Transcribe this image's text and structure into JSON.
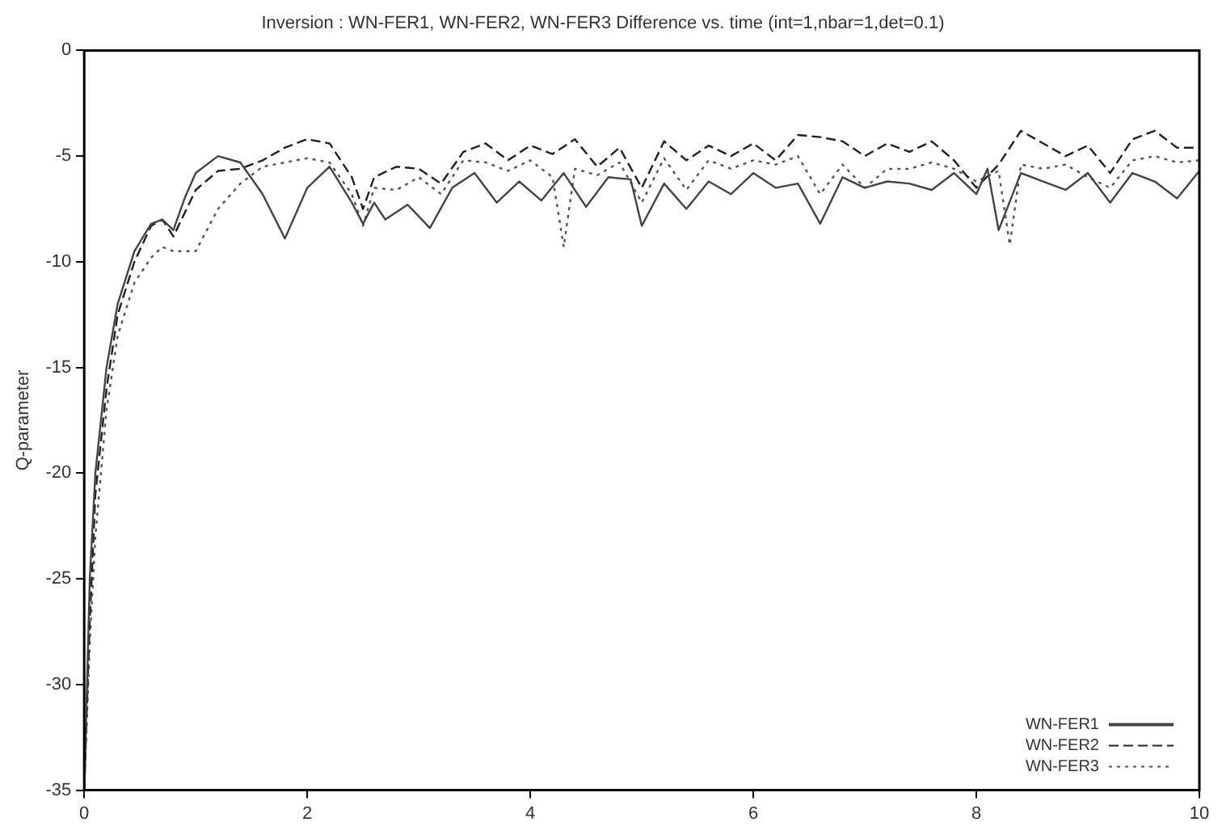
{
  "chart_data": {
    "type": "line",
    "title": "Inversion : WN-FER1, WN-FER2, WN-FER3 Difference vs. time (int=1,nbar=1,det=0.1)",
    "ylabel": "Q-parameter",
    "x": [
      0,
      0.05,
      0.1,
      0.2,
      0.3,
      0.45,
      0.6,
      0.7,
      0.8,
      0.9,
      1.0,
      1.2,
      1.4,
      1.6,
      1.8,
      2.0,
      2.2,
      2.4,
      2.5,
      2.6,
      2.7,
      2.9,
      3.1,
      3.3,
      3.5,
      3.7,
      3.9,
      4.1,
      4.3,
      4.5,
      4.7,
      4.9,
      5.0,
      5.2,
      5.4,
      5.6,
      5.8,
      6.0,
      6.2,
      6.4,
      6.6,
      6.8,
      7.0,
      7.2,
      7.4,
      7.6,
      7.8,
      8.0,
      8.1,
      8.2,
      8.4,
      8.6,
      8.8,
      9.0,
      9.2,
      9.4,
      9.6,
      9.8,
      10
    ],
    "series": [
      {
        "name": "WN-FER1",
        "color": "#444444",
        "line_style": "solid",
        "values": [
          -35,
          -25,
          -20,
          -15,
          -12,
          -9.5,
          -8.2,
          -8,
          -8.5,
          -7,
          -5.8,
          -5,
          -5.3,
          -6.8,
          -8.9,
          -6.5,
          -5.5,
          -7.2,
          -8.2,
          -7.2,
          -8,
          -7.3,
          -8.4,
          -6.5,
          -5.8,
          -7.2,
          -6.2,
          -7.1,
          -5.8,
          -7.4,
          -6,
          -6.1,
          -8.3,
          -6.3,
          -7.5,
          -6.2,
          -6.8,
          -5.8,
          -6.5,
          -6.3,
          -8.2,
          -6,
          -6.5,
          -6.2,
          -6.3,
          -6.6,
          -5.8,
          -6.8,
          -5.6,
          -8.5,
          -5.8,
          -6.2,
          -6.6,
          -5.8,
          -7.2,
          -5.8,
          -6.2,
          -7,
          -5.7
        ]
      },
      {
        "name": "WN-FER2",
        "color": "#222222",
        "line_style": "dashed",
        "x": [
          0,
          0.05,
          0.1,
          0.2,
          0.3,
          0.45,
          0.6,
          0.7,
          0.8,
          1.0,
          1.2,
          1.4,
          1.6,
          1.8,
          2.0,
          2.2,
          2.4,
          2.5,
          2.6,
          2.8,
          3.0,
          3.2,
          3.4,
          3.6,
          3.8,
          4.0,
          4.2,
          4.4,
          4.6,
          4.8,
          5.0,
          5.2,
          5.4,
          5.6,
          5.8,
          6.0,
          6.2,
          6.4,
          6.6,
          6.8,
          7.0,
          7.2,
          7.4,
          7.6,
          7.8,
          8.0,
          8.2,
          8.4,
          8.6,
          8.8,
          9.0,
          9.2,
          9.4,
          9.6,
          9.8,
          10
        ],
        "values": [
          -35,
          -27,
          -21,
          -16,
          -12.5,
          -10,
          -8.3,
          -8,
          -8.8,
          -6.6,
          -5.7,
          -5.6,
          -5.2,
          -4.6,
          -4.2,
          -4.4,
          -6,
          -7.5,
          -6,
          -5.5,
          -5.6,
          -6.3,
          -4.8,
          -4.4,
          -5.2,
          -4.5,
          -4.9,
          -4.2,
          -5.5,
          -4.6,
          -6.5,
          -4.3,
          -5.2,
          -4.5,
          -5,
          -4.4,
          -5.2,
          -4,
          -4.1,
          -4.3,
          -5,
          -4.4,
          -4.8,
          -4.3,
          -5.2,
          -6.5,
          -5.4,
          -3.8,
          -4.4,
          -5,
          -4.5,
          -5.8,
          -4.2,
          -3.8,
          -4.6,
          -4.6
        ]
      },
      {
        "name": "WN-FER3",
        "color": "#555555",
        "line_style": "dotted",
        "x": [
          0,
          0.05,
          0.1,
          0.2,
          0.3,
          0.45,
          0.6,
          0.7,
          0.8,
          1.0,
          1.2,
          1.4,
          1.6,
          1.8,
          2.0,
          2.2,
          2.4,
          2.5,
          2.6,
          2.8,
          3.0,
          3.2,
          3.4,
          3.6,
          3.8,
          4.0,
          4.2,
          4.3,
          4.4,
          4.6,
          4.8,
          5.0,
          5.2,
          5.4,
          5.6,
          5.8,
          6.0,
          6.2,
          6.4,
          6.6,
          6.8,
          7.0,
          7.2,
          7.4,
          7.6,
          7.8,
          8.0,
          8.2,
          8.3,
          8.4,
          8.6,
          8.8,
          9.0,
          9.2,
          9.4,
          9.6,
          9.8,
          10
        ],
        "values": [
          -35,
          -28,
          -23,
          -17,
          -13.5,
          -11,
          -9.8,
          -9.3,
          -9.5,
          -9.5,
          -7.5,
          -6.3,
          -5.5,
          -5.3,
          -5.1,
          -5.3,
          -6.8,
          -8.3,
          -6.5,
          -6.6,
          -6,
          -6.8,
          -5.2,
          -5.3,
          -5.7,
          -5.2,
          -6,
          -9.3,
          -5.6,
          -5.9,
          -5.3,
          -7.2,
          -5.1,
          -6.6,
          -5.2,
          -5.6,
          -5.2,
          -5.4,
          -5,
          -6.8,
          -5.4,
          -6.5,
          -5.6,
          -5.6,
          -5.3,
          -5.6,
          -6.2,
          -5.7,
          -9.2,
          -5.4,
          -5.6,
          -5.4,
          -6,
          -6.5,
          -5.2,
          -5,
          -5.3,
          -5.2
        ]
      }
    ],
    "xlim": [
      0,
      10
    ],
    "xticks": [
      0,
      2,
      4,
      6,
      8,
      10
    ],
    "ylim": [
      -35,
      0
    ],
    "yticks": [
      0,
      -5,
      -10,
      -15,
      -20,
      -25,
      -30,
      -35
    ],
    "grid": false,
    "legend": "bottom right",
    "marker": "none"
  }
}
